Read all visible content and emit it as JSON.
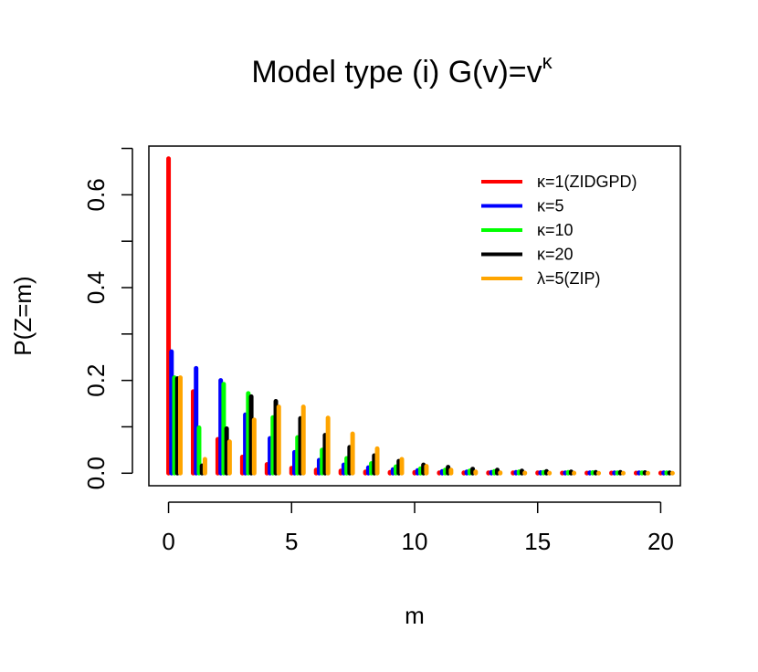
{
  "chart_data": {
    "type": "bar",
    "title": "Model type (i) G(v)=v",
    "title_superscript": "κ",
    "xlabel": "m",
    "ylabel": "P(Z=m)",
    "xlim": [
      -0.8,
      20.8
    ],
    "ylim": [
      -0.027,
      0.705
    ],
    "x_ticks": [
      0,
      5,
      10,
      15,
      20
    ],
    "x_tick_labels": [
      "0",
      "5",
      "10",
      "15",
      "20"
    ],
    "y_ticks": [
      0.0,
      0.1,
      0.2,
      0.3,
      0.4,
      0.5,
      0.6,
      0.7
    ],
    "y_tick_labels": [
      "0.0",
      "",
      "0.2",
      "",
      "0.4",
      "",
      "0.6",
      ""
    ],
    "categories": [
      0,
      1,
      2,
      3,
      4,
      5,
      6,
      7,
      8,
      9,
      10,
      11,
      12,
      13,
      14,
      15,
      16,
      17,
      18,
      19,
      20
    ],
    "legend_position": "top-right",
    "series": [
      {
        "name": "κ=1(ZIDGPD)",
        "color": "#ff0000",
        "values": [
          0.678,
          0.176,
          0.073,
          0.035,
          0.019,
          0.011,
          0.007,
          0.005,
          0.003,
          0.002,
          0.002,
          0.001,
          0.001,
          0.001,
          0.001,
          0.001,
          0.0005,
          0.0005,
          0.0005,
          0.0005,
          0.0005
        ]
      },
      {
        "name": "κ=5",
        "color": "#0000ff",
        "values": [
          0.262,
          0.226,
          0.2,
          0.126,
          0.075,
          0.045,
          0.028,
          0.018,
          0.012,
          0.008,
          0.006,
          0.004,
          0.003,
          0.002,
          0.002,
          0.0015,
          0.001,
          0.001,
          0.001,
          0.001,
          0.001
        ]
      },
      {
        "name": "κ=10",
        "color": "#00ff00",
        "values": [
          0.206,
          0.098,
          0.192,
          0.172,
          0.12,
          0.077,
          0.05,
          0.032,
          0.021,
          0.014,
          0.01,
          0.007,
          0.005,
          0.004,
          0.003,
          0.002,
          0.002,
          0.0015,
          0.001,
          0.001,
          0.001
        ]
      },
      {
        "name": "κ=20",
        "color": "#000000",
        "values": [
          0.204,
          0.016,
          0.096,
          0.165,
          0.155,
          0.118,
          0.082,
          0.056,
          0.038,
          0.026,
          0.018,
          0.013,
          0.009,
          0.007,
          0.005,
          0.004,
          0.003,
          0.002,
          0.002,
          0.0015,
          0.001
        ]
      },
      {
        "name": "λ=5(ZIP)",
        "color": "#ffa500",
        "values": [
          0.206,
          0.03,
          0.068,
          0.115,
          0.143,
          0.143,
          0.119,
          0.085,
          0.053,
          0.03,
          0.015,
          0.007,
          0.003,
          0.001,
          0.0005,
          0.0003,
          0.0002,
          0.0001,
          0.0001,
          0.0001,
          0.0001
        ]
      }
    ]
  }
}
